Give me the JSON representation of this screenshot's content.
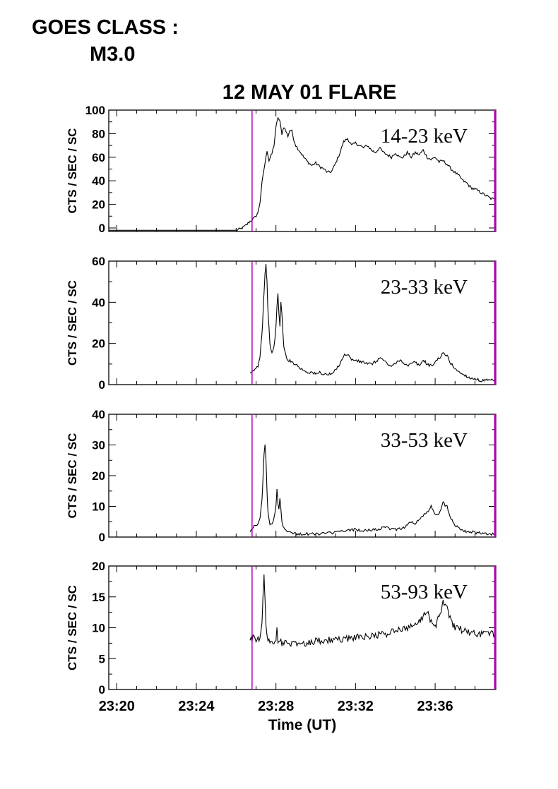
{
  "goes": {
    "label": "GOES CLASS :",
    "value": "M3.0"
  },
  "chart_data": {
    "type": "line",
    "title": "12 MAY 01 FLARE",
    "xlabel": "Time (UT)",
    "x_ticks": [
      "23:20",
      "23:24",
      "23:28",
      "23:32",
      "23:36"
    ],
    "x_range_minutes": [
      19.6,
      39.05
    ],
    "marker_time": "23:26.8",
    "end_marker_time": "23:39.05",
    "marker_color": "#b000b0",
    "line_color": "#000000",
    "panels": [
      {
        "name": "14-23 keV",
        "ylabel": "CTS / SEC / SC",
        "ylim": [
          -3,
          100
        ],
        "yticks": [
          0,
          20,
          40,
          60,
          80,
          100
        ],
        "series": [
          [
            19.6,
            -2
          ],
          [
            26.0,
            -2
          ],
          [
            26.2,
            -1
          ],
          [
            26.3,
            0
          ],
          [
            26.4,
            1
          ],
          [
            26.55,
            3
          ],
          [
            26.65,
            5
          ],
          [
            26.8,
            7
          ],
          [
            26.95,
            9
          ],
          [
            27.1,
            13
          ],
          [
            27.2,
            22
          ],
          [
            27.3,
            38
          ],
          [
            27.4,
            50
          ],
          [
            27.5,
            60
          ],
          [
            27.55,
            66
          ],
          [
            27.65,
            57
          ],
          [
            27.8,
            63
          ],
          [
            27.9,
            70
          ],
          [
            28.0,
            85
          ],
          [
            28.1,
            94
          ],
          [
            28.2,
            90
          ],
          [
            28.3,
            80
          ],
          [
            28.4,
            86
          ],
          [
            28.5,
            82
          ],
          [
            28.6,
            78
          ],
          [
            28.7,
            83
          ],
          [
            28.8,
            82
          ],
          [
            28.9,
            75
          ],
          [
            29.0,
            70
          ],
          [
            29.2,
            65
          ],
          [
            29.4,
            60
          ],
          [
            29.6,
            56
          ],
          [
            29.8,
            53
          ],
          [
            30.0,
            55
          ],
          [
            30.2,
            52
          ],
          [
            30.4,
            50
          ],
          [
            30.6,
            47
          ],
          [
            30.8,
            48
          ],
          [
            31.0,
            55
          ],
          [
            31.2,
            63
          ],
          [
            31.4,
            73
          ],
          [
            31.6,
            76
          ],
          [
            31.8,
            70
          ],
          [
            32.0,
            72
          ],
          [
            32.2,
            70
          ],
          [
            32.4,
            68
          ],
          [
            32.6,
            70
          ],
          [
            32.8,
            66
          ],
          [
            33.0,
            64
          ],
          [
            33.2,
            68
          ],
          [
            33.4,
            64
          ],
          [
            33.6,
            62
          ],
          [
            33.8,
            60
          ],
          [
            34.0,
            64
          ],
          [
            34.2,
            60
          ],
          [
            34.4,
            60
          ],
          [
            34.6,
            64
          ],
          [
            34.8,
            60
          ],
          [
            35.0,
            64
          ],
          [
            35.2,
            62
          ],
          [
            35.4,
            66
          ],
          [
            35.6,
            60
          ],
          [
            35.8,
            58
          ],
          [
            36.0,
            60
          ],
          [
            36.2,
            56
          ],
          [
            36.4,
            57
          ],
          [
            36.6,
            54
          ],
          [
            36.8,
            50
          ],
          [
            37.0,
            47
          ],
          [
            37.2,
            44
          ],
          [
            37.4,
            40
          ],
          [
            37.6,
            38
          ],
          [
            37.8,
            34
          ],
          [
            38.0,
            33
          ],
          [
            38.2,
            31
          ],
          [
            38.4,
            29
          ],
          [
            38.6,
            27
          ],
          [
            38.8,
            25
          ],
          [
            39.0,
            24
          ]
        ]
      },
      {
        "name": "23-33 keV",
        "ylabel": "CTS / SEC / SC",
        "ylim": [
          0,
          60
        ],
        "yticks": [
          0,
          20,
          40,
          60
        ],
        "series": [
          [
            26.7,
            5
          ],
          [
            26.8,
            6
          ],
          [
            26.9,
            7
          ],
          [
            27.0,
            8
          ],
          [
            27.1,
            9
          ],
          [
            27.2,
            14
          ],
          [
            27.3,
            25
          ],
          [
            27.35,
            35
          ],
          [
            27.4,
            45
          ],
          [
            27.45,
            54
          ],
          [
            27.5,
            58
          ],
          [
            27.55,
            50
          ],
          [
            27.6,
            35
          ],
          [
            27.7,
            20
          ],
          [
            27.8,
            15
          ],
          [
            27.9,
            18
          ],
          [
            28.0,
            28
          ],
          [
            28.05,
            38
          ],
          [
            28.1,
            44
          ],
          [
            28.15,
            35
          ],
          [
            28.2,
            28
          ],
          [
            28.25,
            40
          ],
          [
            28.3,
            35
          ],
          [
            28.35,
            25
          ],
          [
            28.4,
            18
          ],
          [
            28.5,
            14
          ],
          [
            28.6,
            12
          ],
          [
            28.8,
            11
          ],
          [
            29.0,
            10
          ],
          [
            29.2,
            8
          ],
          [
            29.4,
            7
          ],
          [
            29.6,
            6
          ],
          [
            29.8,
            6
          ],
          [
            30.0,
            5
          ],
          [
            30.2,
            6
          ],
          [
            30.4,
            5
          ],
          [
            30.6,
            5
          ],
          [
            30.8,
            5
          ],
          [
            31.0,
            7
          ],
          [
            31.2,
            10
          ],
          [
            31.4,
            14
          ],
          [
            31.6,
            15
          ],
          [
            31.8,
            12
          ],
          [
            32.0,
            12
          ],
          [
            32.2,
            11
          ],
          [
            32.4,
            11
          ],
          [
            32.6,
            10
          ],
          [
            32.8,
            10
          ],
          [
            33.0,
            11
          ],
          [
            33.2,
            13
          ],
          [
            33.4,
            12
          ],
          [
            33.6,
            10
          ],
          [
            33.8,
            9
          ],
          [
            34.0,
            10
          ],
          [
            34.2,
            12
          ],
          [
            34.4,
            11
          ],
          [
            34.6,
            9
          ],
          [
            34.8,
            10
          ],
          [
            35.0,
            11
          ],
          [
            35.2,
            9
          ],
          [
            35.4,
            12
          ],
          [
            35.6,
            10
          ],
          [
            35.8,
            9
          ],
          [
            36.0,
            11
          ],
          [
            36.2,
            13
          ],
          [
            36.4,
            15
          ],
          [
            36.6,
            14
          ],
          [
            36.8,
            10
          ],
          [
            37.0,
            8
          ],
          [
            37.2,
            6
          ],
          [
            37.4,
            5
          ],
          [
            37.6,
            4
          ],
          [
            37.8,
            3
          ],
          [
            38.0,
            3
          ],
          [
            38.2,
            2
          ],
          [
            38.5,
            2
          ],
          [
            38.8,
            2
          ],
          [
            39.0,
            2
          ]
        ]
      },
      {
        "name": "33-53 keV",
        "ylabel": "CTS / SEC / SC",
        "ylim": [
          0,
          40
        ],
        "yticks": [
          0,
          10,
          20,
          30,
          40
        ],
        "series": [
          [
            26.7,
            2
          ],
          [
            26.8,
            3
          ],
          [
            27.0,
            4
          ],
          [
            27.1,
            4
          ],
          [
            27.2,
            6
          ],
          [
            27.3,
            12
          ],
          [
            27.35,
            20
          ],
          [
            27.4,
            27
          ],
          [
            27.45,
            30
          ],
          [
            27.5,
            25
          ],
          [
            27.55,
            15
          ],
          [
            27.6,
            8
          ],
          [
            27.7,
            4
          ],
          [
            27.8,
            4
          ],
          [
            27.9,
            6
          ],
          [
            28.0,
            10
          ],
          [
            28.05,
            16
          ],
          [
            28.1,
            11
          ],
          [
            28.15,
            9
          ],
          [
            28.2,
            13
          ],
          [
            28.25,
            9
          ],
          [
            28.3,
            5
          ],
          [
            28.4,
            3
          ],
          [
            28.6,
            2
          ],
          [
            28.8,
            1.5
          ],
          [
            29.0,
            1
          ],
          [
            29.5,
            1
          ],
          [
            30.0,
            1
          ],
          [
            30.5,
            1.2
          ],
          [
            31.0,
            1.5
          ],
          [
            31.5,
            2
          ],
          [
            32.0,
            2.5
          ],
          [
            32.5,
            2
          ],
          [
            33.0,
            2.5
          ],
          [
            33.5,
            3
          ],
          [
            34.0,
            2.5
          ],
          [
            34.4,
            3
          ],
          [
            34.6,
            4
          ],
          [
            34.8,
            5
          ],
          [
            35.0,
            4
          ],
          [
            35.2,
            6
          ],
          [
            35.4,
            7
          ],
          [
            35.6,
            8
          ],
          [
            35.8,
            10
          ],
          [
            36.0,
            7
          ],
          [
            36.2,
            8
          ],
          [
            36.4,
            11
          ],
          [
            36.6,
            10
          ],
          [
            36.8,
            6
          ],
          [
            37.0,
            4
          ],
          [
            37.2,
            3
          ],
          [
            37.5,
            2
          ],
          [
            38.0,
            1.5
          ],
          [
            38.5,
            1
          ],
          [
            39.0,
            1
          ]
        ]
      },
      {
        "name": "53-93 keV",
        "ylabel": "CTS / SEC / SC",
        "ylim": [
          0,
          20
        ],
        "yticks": [
          0,
          5,
          10,
          15,
          20
        ],
        "series": [
          [
            26.7,
            8
          ],
          [
            26.9,
            8.5
          ],
          [
            27.1,
            8
          ],
          [
            27.2,
            8.5
          ],
          [
            27.3,
            11
          ],
          [
            27.35,
            15
          ],
          [
            27.4,
            18.5
          ],
          [
            27.45,
            15
          ],
          [
            27.5,
            10
          ],
          [
            27.6,
            8
          ],
          [
            27.8,
            7.5
          ],
          [
            28.0,
            8
          ],
          [
            28.05,
            10
          ],
          [
            28.1,
            8
          ],
          [
            28.3,
            7.5
          ],
          [
            28.6,
            7.5
          ],
          [
            29.0,
            7.5
          ],
          [
            29.5,
            7.5
          ],
          [
            30.0,
            7.8
          ],
          [
            30.5,
            8
          ],
          [
            31.0,
            8
          ],
          [
            31.5,
            8.2
          ],
          [
            32.0,
            8.5
          ],
          [
            32.5,
            8.5
          ],
          [
            33.0,
            8.8
          ],
          [
            33.5,
            9
          ],
          [
            34.0,
            9.5
          ],
          [
            34.5,
            10
          ],
          [
            35.0,
            10.5
          ],
          [
            35.2,
            11
          ],
          [
            35.4,
            12
          ],
          [
            35.6,
            12.5
          ],
          [
            35.8,
            11
          ],
          [
            36.0,
            10
          ],
          [
            36.2,
            12
          ],
          [
            36.4,
            14
          ],
          [
            36.6,
            13
          ],
          [
            36.8,
            11
          ],
          [
            37.0,
            10
          ],
          [
            37.5,
            9.5
          ],
          [
            38.0,
            9
          ],
          [
            38.5,
            9
          ],
          [
            39.0,
            9
          ]
        ]
      }
    ]
  }
}
